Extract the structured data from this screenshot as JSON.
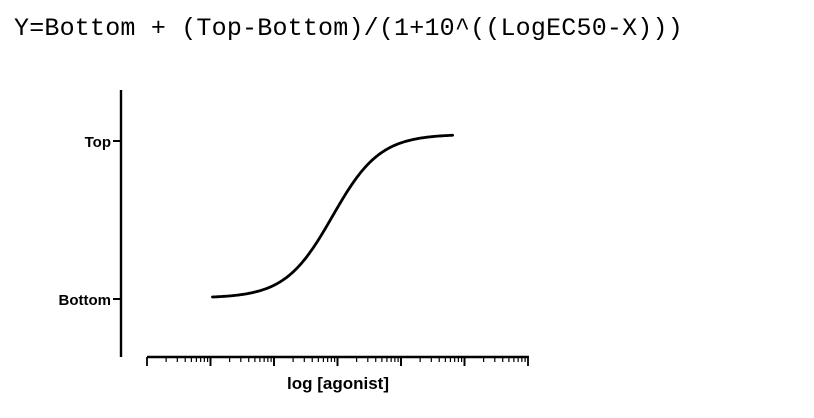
{
  "equation": "Y=Bottom + (Top-Bottom)/(1+10^((LogEC50-X)))",
  "chart_data": {
    "type": "line",
    "title": "",
    "xlabel": "log [agonist]",
    "ylabel": "",
    "y_tick_labels": [
      "Top",
      "Bottom"
    ],
    "series": [
      {
        "bottom": 0,
        "top": 1,
        "log_ec50": 0,
        "x": [
          -2.2,
          -1.8,
          -1.4,
          -1.0,
          -0.6,
          -0.2,
          0.2,
          0.6,
          1.0,
          1.4,
          1.8,
          2.2
        ],
        "values": [
          0.006,
          0.016,
          0.038,
          0.091,
          0.201,
          0.387,
          0.613,
          0.799,
          0.909,
          0.962,
          0.984,
          0.994
        ]
      }
    ],
    "xlim": [
      -3.4,
      3.6
    ],
    "ylim": [
      -0.36,
      1.27
    ],
    "grid": false,
    "legend": "none",
    "line_color": "#000000"
  }
}
